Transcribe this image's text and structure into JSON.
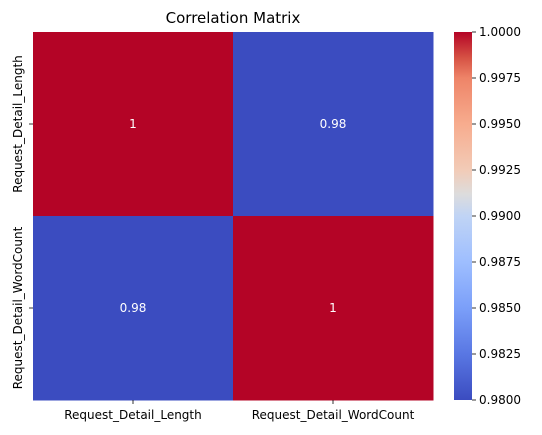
{
  "chart_data": {
    "type": "heatmap",
    "title": "Correlation Matrix",
    "x_categories": [
      "Request_Detail_Length",
      "Request_Detail_WordCount"
    ],
    "y_categories": [
      "Request_Detail_Length",
      "Request_Detail_WordCount"
    ],
    "values": [
      [
        1,
        0.98
      ],
      [
        0.98,
        1
      ]
    ],
    "annotations": [
      [
        "1",
        "0.98"
      ],
      [
        "0.98",
        "1"
      ]
    ],
    "colormap": "coolwarm",
    "colors": {
      "low": "#3b4cc0",
      "high": "#b40426"
    },
    "colorbar": {
      "min": 0.98,
      "max": 1.0,
      "ticks": [
        "1.0000",
        "0.9975",
        "0.9950",
        "0.9925",
        "0.9900",
        "0.9875",
        "0.9850",
        "0.9825",
        "0.9800"
      ]
    }
  }
}
